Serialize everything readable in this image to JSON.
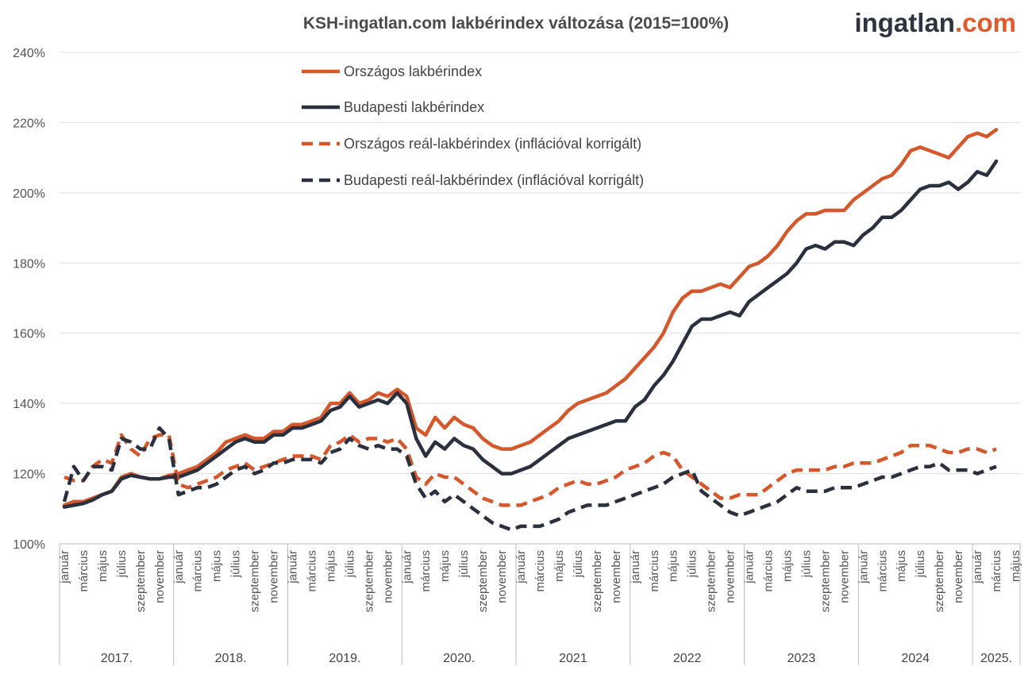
{
  "logo": {
    "main": "ingatlan",
    "accent": ".com"
  },
  "colors": {
    "orange": "#d4582b",
    "navy": "#2b303e",
    "grid": "#dddddd",
    "axis": "#bbbbbb"
  },
  "chart_data": {
    "type": "line",
    "title": "KSH-ingatlan.com lakbérindex változása (2015=100%)",
    "xlabel": "",
    "ylabel": "",
    "ylim": [
      100,
      240
    ],
    "yticks": [
      100,
      120,
      140,
      160,
      180,
      200,
      220,
      240
    ],
    "ytick_labels": [
      "100%",
      "120%",
      "140%",
      "160%",
      "180%",
      "200%",
      "220%",
      "240%"
    ],
    "grid": "horizontal",
    "legend_position": "top-left-inside",
    "x_month_labels": [
      "január",
      "március",
      "május",
      "július",
      "szeptember",
      "november"
    ],
    "years": [
      {
        "label": "2017.",
        "months": 12
      },
      {
        "label": "2018.",
        "months": 12
      },
      {
        "label": "2019.",
        "months": 12
      },
      {
        "label": "2020.",
        "months": 12
      },
      {
        "label": "2021",
        "months": 12
      },
      {
        "label": "2022",
        "months": 12
      },
      {
        "label": "2023",
        "months": 12
      },
      {
        "label": "2024",
        "months": 12
      },
      {
        "label": "2025.",
        "months": 5
      }
    ],
    "series": [
      {
        "name": "Országos lakbérindex",
        "color": "#d4582b",
        "style": "solid",
        "values": [
          111,
          112,
          112,
          113,
          114,
          115,
          119,
          120,
          119,
          118.5,
          118.5,
          119.5,
          120,
          121,
          122,
          124,
          126,
          129,
          130,
          131,
          130,
          130,
          132,
          132,
          134,
          134,
          135,
          136,
          140,
          140,
          143,
          140,
          141,
          143,
          142,
          144,
          142,
          133,
          131,
          136,
          133,
          136,
          134,
          133,
          130,
          128,
          127,
          127,
          128,
          129,
          131,
          133,
          135,
          138,
          140,
          141,
          142,
          143,
          145,
          147,
          150,
          153,
          156,
          160,
          166,
          170,
          172,
          172,
          173,
          174,
          173,
          176,
          179,
          180,
          182,
          185,
          189,
          192,
          194,
          194,
          195,
          195,
          195,
          198,
          200,
          202,
          204,
          205,
          208,
          212,
          213,
          212,
          211,
          210,
          213,
          216,
          217,
          216,
          218
        ]
      },
      {
        "name": "Budapesti lakbérindex",
        "color": "#2b303e",
        "style": "solid",
        "values": [
          110.5,
          111,
          111.5,
          112.5,
          114,
          115,
          118.5,
          119.5,
          119,
          118.5,
          118.5,
          119,
          119,
          120,
          121,
          123,
          125,
          127,
          129,
          130,
          129,
          129,
          131,
          131,
          133,
          133,
          134,
          135,
          138,
          139,
          142,
          139,
          140,
          141,
          140,
          143,
          140,
          130,
          125,
          129,
          127,
          130,
          128,
          127,
          124,
          122,
          120,
          120,
          121,
          122,
          124,
          126,
          128,
          130,
          131,
          132,
          133,
          134,
          135,
          135,
          139,
          141,
          145,
          148,
          152,
          157,
          162,
          164,
          164,
          165,
          166,
          165,
          169,
          171,
          173,
          175,
          177,
          180,
          184,
          185,
          184,
          186,
          186,
          185,
          188,
          190,
          193,
          193,
          195,
          198,
          201,
          202,
          202,
          203,
          201,
          203,
          206,
          205,
          209
        ]
      },
      {
        "name": "Országos reál-lakbérindex (inflációval korrigált)",
        "color": "#d4582b",
        "style": "dashed",
        "values": [
          119,
          118,
          118,
          122,
          124,
          123,
          131,
          127,
          125,
          130,
          131,
          131,
          117,
          116,
          117,
          118,
          119,
          121,
          122,
          123,
          121,
          122,
          123,
          124,
          125,
          125,
          125,
          124,
          128,
          129,
          131,
          129,
          130,
          130,
          129,
          130,
          127,
          119,
          117,
          120,
          119,
          119,
          117,
          115,
          113,
          112,
          111,
          111,
          111,
          112,
          113,
          114,
          116,
          117,
          118,
          117,
          117,
          118,
          119,
          121,
          122,
          123,
          125,
          126,
          125,
          121,
          119,
          117,
          115,
          113,
          113,
          114,
          114,
          114,
          116,
          118,
          120,
          121,
          121,
          121,
          121,
          122,
          122,
          123,
          123,
          123,
          124,
          125,
          126,
          128,
          128,
          128,
          127,
          126,
          126,
          127,
          127,
          126,
          127
        ]
      },
      {
        "name": "Budapesti reál-lakbérindex (inflációval korrigált)",
        "color": "#2b303e",
        "style": "dashed",
        "values": [
          112,
          122,
          118,
          122,
          122,
          121,
          130,
          129,
          127,
          127,
          133,
          130,
          114,
          115,
          116,
          116,
          117,
          119,
          121,
          122,
          120,
          121,
          123,
          123,
          124,
          124,
          124,
          123,
          126,
          127,
          130,
          128,
          127,
          128,
          127,
          127,
          125,
          117,
          113,
          115,
          112,
          114,
          112,
          110,
          108,
          106,
          105,
          104,
          105,
          105,
          105,
          106,
          107,
          109,
          110,
          111,
          111,
          111,
          112,
          113,
          114,
          115,
          116,
          117,
          119,
          120,
          121,
          115,
          113,
          111,
          109,
          108,
          109,
          110,
          111,
          112,
          114,
          116,
          115,
          115,
          115,
          116,
          116,
          116,
          117,
          118,
          119,
          119,
          120,
          121,
          122,
          122,
          123,
          121,
          121,
          121,
          120,
          121,
          122
        ]
      }
    ]
  }
}
